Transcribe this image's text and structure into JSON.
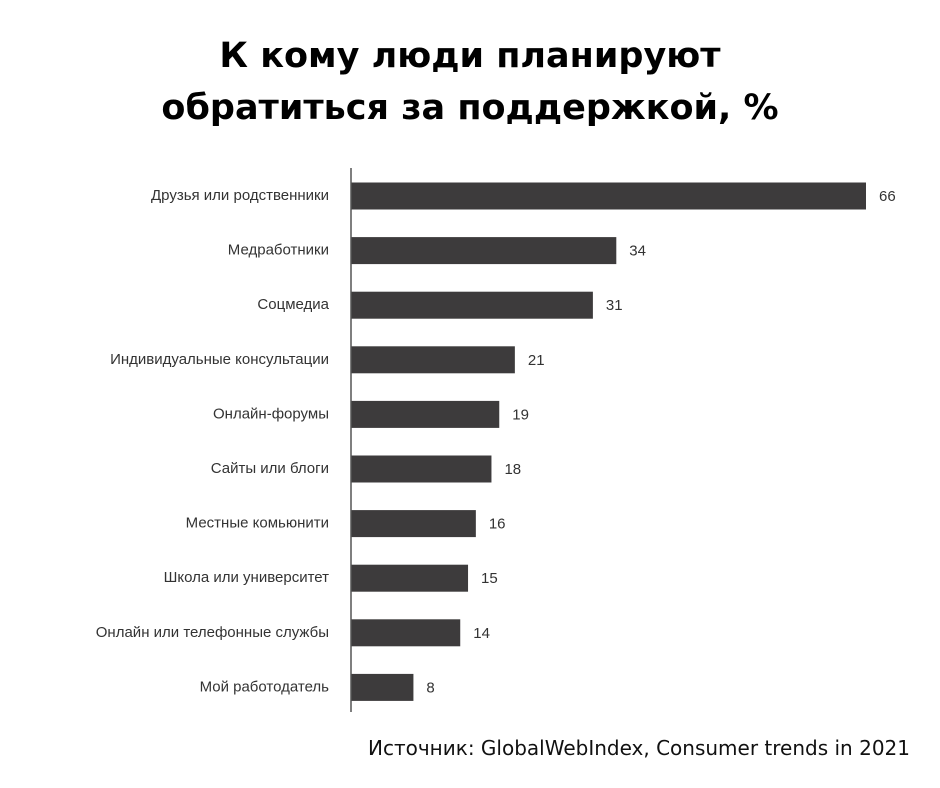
{
  "header": {
    "title_line1": "К кому люди планируют",
    "title_line2": "обратиться за поддержкой, %"
  },
  "footer": {
    "source": "Источник: GlobalWebIndex, Consumer trends in 2021"
  },
  "chart_data": {
    "type": "bar",
    "orientation": "horizontal",
    "categories": [
      "Друзья или родственники",
      "Медработники",
      "Соцмедиа",
      "Индивидуальные консультации",
      "Онлайн-форумы",
      "Сайты или блоги",
      "Местные комьюнити",
      "Школа или университет",
      "Онлайн или телефонные службы",
      "Мой работодатель"
    ],
    "values": [
      66,
      34,
      31,
      21,
      19,
      18,
      16,
      15,
      14,
      8
    ],
    "xlim": [
      0,
      66
    ],
    "grid": false,
    "bar_color": "#3d3b3c",
    "axis_color": "#555555",
    "label_color": "#333333"
  }
}
